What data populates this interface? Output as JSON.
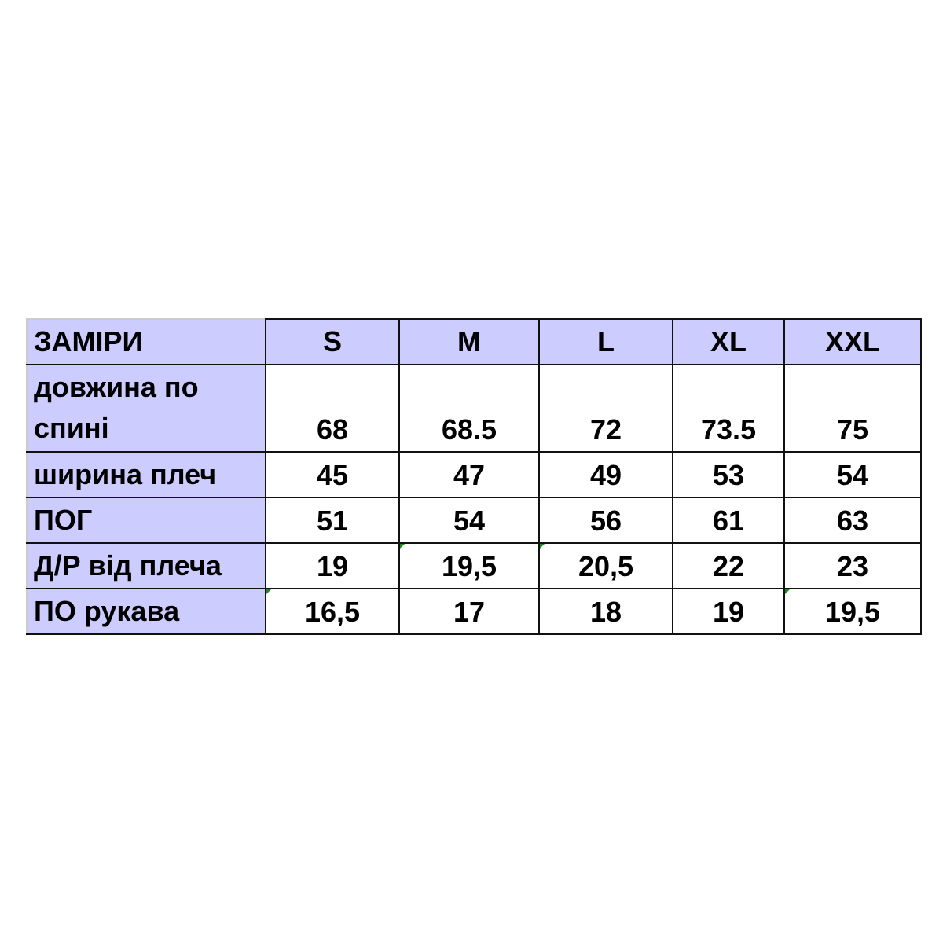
{
  "table": {
    "header": [
      "ЗАМІРИ",
      "S",
      "M",
      "L",
      "XL",
      "XXL"
    ],
    "rows": [
      {
        "label": "довжина по спині",
        "values": [
          "68",
          "68.5",
          "72",
          "73.5",
          "75"
        ]
      },
      {
        "label": "ширина плеч",
        "values": [
          "45",
          "47",
          "49",
          "53",
          "54"
        ]
      },
      {
        "label": "ПОГ",
        "values": [
          "51",
          "54",
          "56",
          "61",
          "63"
        ]
      },
      {
        "label": "Д/Р від плеча",
        "values": [
          "19",
          "19,5",
          "20,5",
          "22",
          "23"
        ]
      },
      {
        "label": "ПО рукава",
        "values": [
          "16,5",
          "17",
          "18",
          "19",
          "19,5"
        ]
      }
    ]
  },
  "colors": {
    "header_bg": "#ccccff",
    "comment_marker": "#1a8a1a"
  }
}
